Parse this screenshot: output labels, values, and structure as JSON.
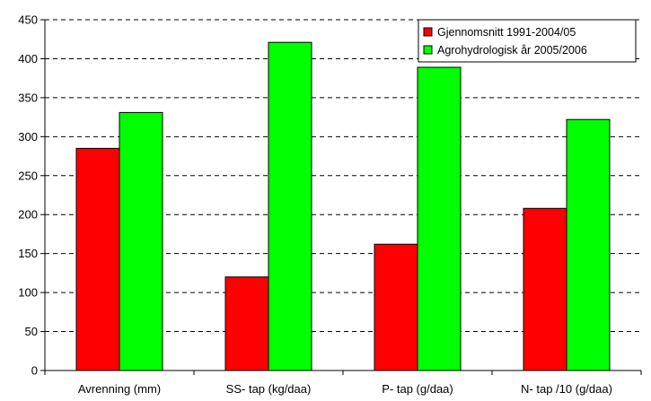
{
  "chart_data": {
    "type": "bar",
    "categories": [
      "Avrenning (mm)",
      "SS- tap (kg/daa)",
      "P- tap (g/daa)",
      "N- tap /10 (g/daa)"
    ],
    "series": [
      {
        "name": "Gjennomsnitt 1991-2004/05",
        "values": [
          285,
          120,
          162,
          208
        ],
        "color": "#ff0000"
      },
      {
        "name": "Agrohydrologisk år 2005/2006",
        "values": [
          331,
          421,
          389,
          322
        ],
        "color": "#00ff00"
      }
    ],
    "ylim": [
      0,
      450
    ],
    "yticks": [
      0,
      50,
      100,
      150,
      200,
      250,
      300,
      350,
      400,
      450
    ],
    "grid": true,
    "legend_position": "top-right"
  }
}
